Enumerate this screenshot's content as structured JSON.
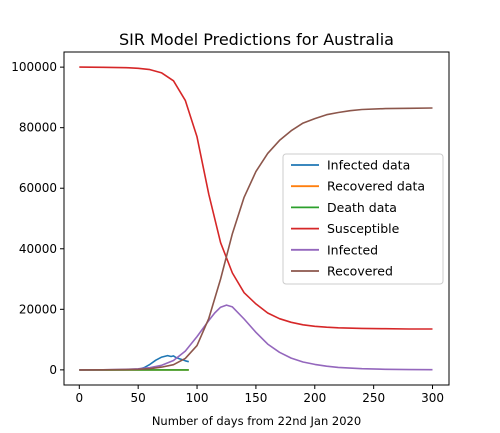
{
  "chart_data": {
    "type": "line",
    "title": "SIR Model Predictions for Australia",
    "xlabel": "Number of days from 22nd Jan 2020",
    "ylabel": "",
    "xlim": [
      -13,
      314
    ],
    "ylim": [
      -5000,
      105000
    ],
    "xticks": [
      0,
      50,
      100,
      150,
      200,
      250,
      300
    ],
    "yticks": [
      0,
      20000,
      40000,
      60000,
      80000,
      100000
    ],
    "grid": false,
    "legend_position": "center-right",
    "series": [
      {
        "name": "Infected data",
        "color": "#1f77b4",
        "points": [
          [
            0,
            0
          ],
          [
            30,
            0
          ],
          [
            40,
            10
          ],
          [
            50,
            150
          ],
          [
            55,
            700
          ],
          [
            60,
            1800
          ],
          [
            65,
            3200
          ],
          [
            70,
            4200
          ],
          [
            75,
            4700
          ],
          [
            78,
            4400
          ],
          [
            80,
            4600
          ],
          [
            82,
            4100
          ],
          [
            85,
            3700
          ],
          [
            88,
            3300
          ],
          [
            90,
            3000
          ],
          [
            93,
            2700
          ]
        ]
      },
      {
        "name": "Recovered data",
        "color": "#ff7f0e",
        "points": [
          [
            0,
            0
          ],
          [
            93,
            0
          ]
        ]
      },
      {
        "name": "Death data",
        "color": "#2ca02c",
        "points": [
          [
            0,
            0
          ],
          [
            93,
            0
          ]
        ]
      },
      {
        "name": "Susceptible",
        "color": "#d62728",
        "points": [
          [
            0,
            100000
          ],
          [
            20,
            99950
          ],
          [
            40,
            99800
          ],
          [
            50,
            99600
          ],
          [
            60,
            99200
          ],
          [
            70,
            98100
          ],
          [
            80,
            95500
          ],
          [
            90,
            89000
          ],
          [
            100,
            77000
          ],
          [
            110,
            58000
          ],
          [
            120,
            42000
          ],
          [
            130,
            32000
          ],
          [
            140,
            25500
          ],
          [
            150,
            21800
          ],
          [
            160,
            18800
          ],
          [
            170,
            16900
          ],
          [
            180,
            15700
          ],
          [
            190,
            14900
          ],
          [
            200,
            14400
          ],
          [
            210,
            14100
          ],
          [
            220,
            13900
          ],
          [
            240,
            13700
          ],
          [
            260,
            13600
          ],
          [
            280,
            13500
          ],
          [
            300,
            13500
          ]
        ]
      },
      {
        "name": "Infected",
        "color": "#9467bd",
        "points": [
          [
            0,
            0
          ],
          [
            20,
            20
          ],
          [
            40,
            180
          ],
          [
            50,
            350
          ],
          [
            60,
            700
          ],
          [
            70,
            1500
          ],
          [
            80,
            3100
          ],
          [
            90,
            6200
          ],
          [
            100,
            11000
          ],
          [
            110,
            16300
          ],
          [
            115,
            18800
          ],
          [
            120,
            20700
          ],
          [
            125,
            21400
          ],
          [
            130,
            20800
          ],
          [
            140,
            16800
          ],
          [
            150,
            12400
          ],
          [
            160,
            8500
          ],
          [
            170,
            5800
          ],
          [
            180,
            3900
          ],
          [
            190,
            2600
          ],
          [
            200,
            1800
          ],
          [
            210,
            1200
          ],
          [
            220,
            800
          ],
          [
            240,
            400
          ],
          [
            260,
            200
          ],
          [
            280,
            100
          ],
          [
            300,
            50
          ]
        ]
      },
      {
        "name": "Recovered",
        "color": "#8c564b",
        "points": [
          [
            0,
            0
          ],
          [
            20,
            30
          ],
          [
            40,
            100
          ],
          [
            50,
            200
          ],
          [
            60,
            400
          ],
          [
            70,
            900
          ],
          [
            80,
            1700
          ],
          [
            90,
            3800
          ],
          [
            100,
            8000
          ],
          [
            110,
            17000
          ],
          [
            120,
            30000
          ],
          [
            130,
            45000
          ],
          [
            140,
            57000
          ],
          [
            150,
            65500
          ],
          [
            160,
            71500
          ],
          [
            170,
            75800
          ],
          [
            180,
            79000
          ],
          [
            190,
            81500
          ],
          [
            200,
            83000
          ],
          [
            210,
            84300
          ],
          [
            220,
            85000
          ],
          [
            230,
            85600
          ],
          [
            240,
            86000
          ],
          [
            260,
            86300
          ],
          [
            280,
            86400
          ],
          [
            300,
            86500
          ]
        ]
      }
    ]
  }
}
